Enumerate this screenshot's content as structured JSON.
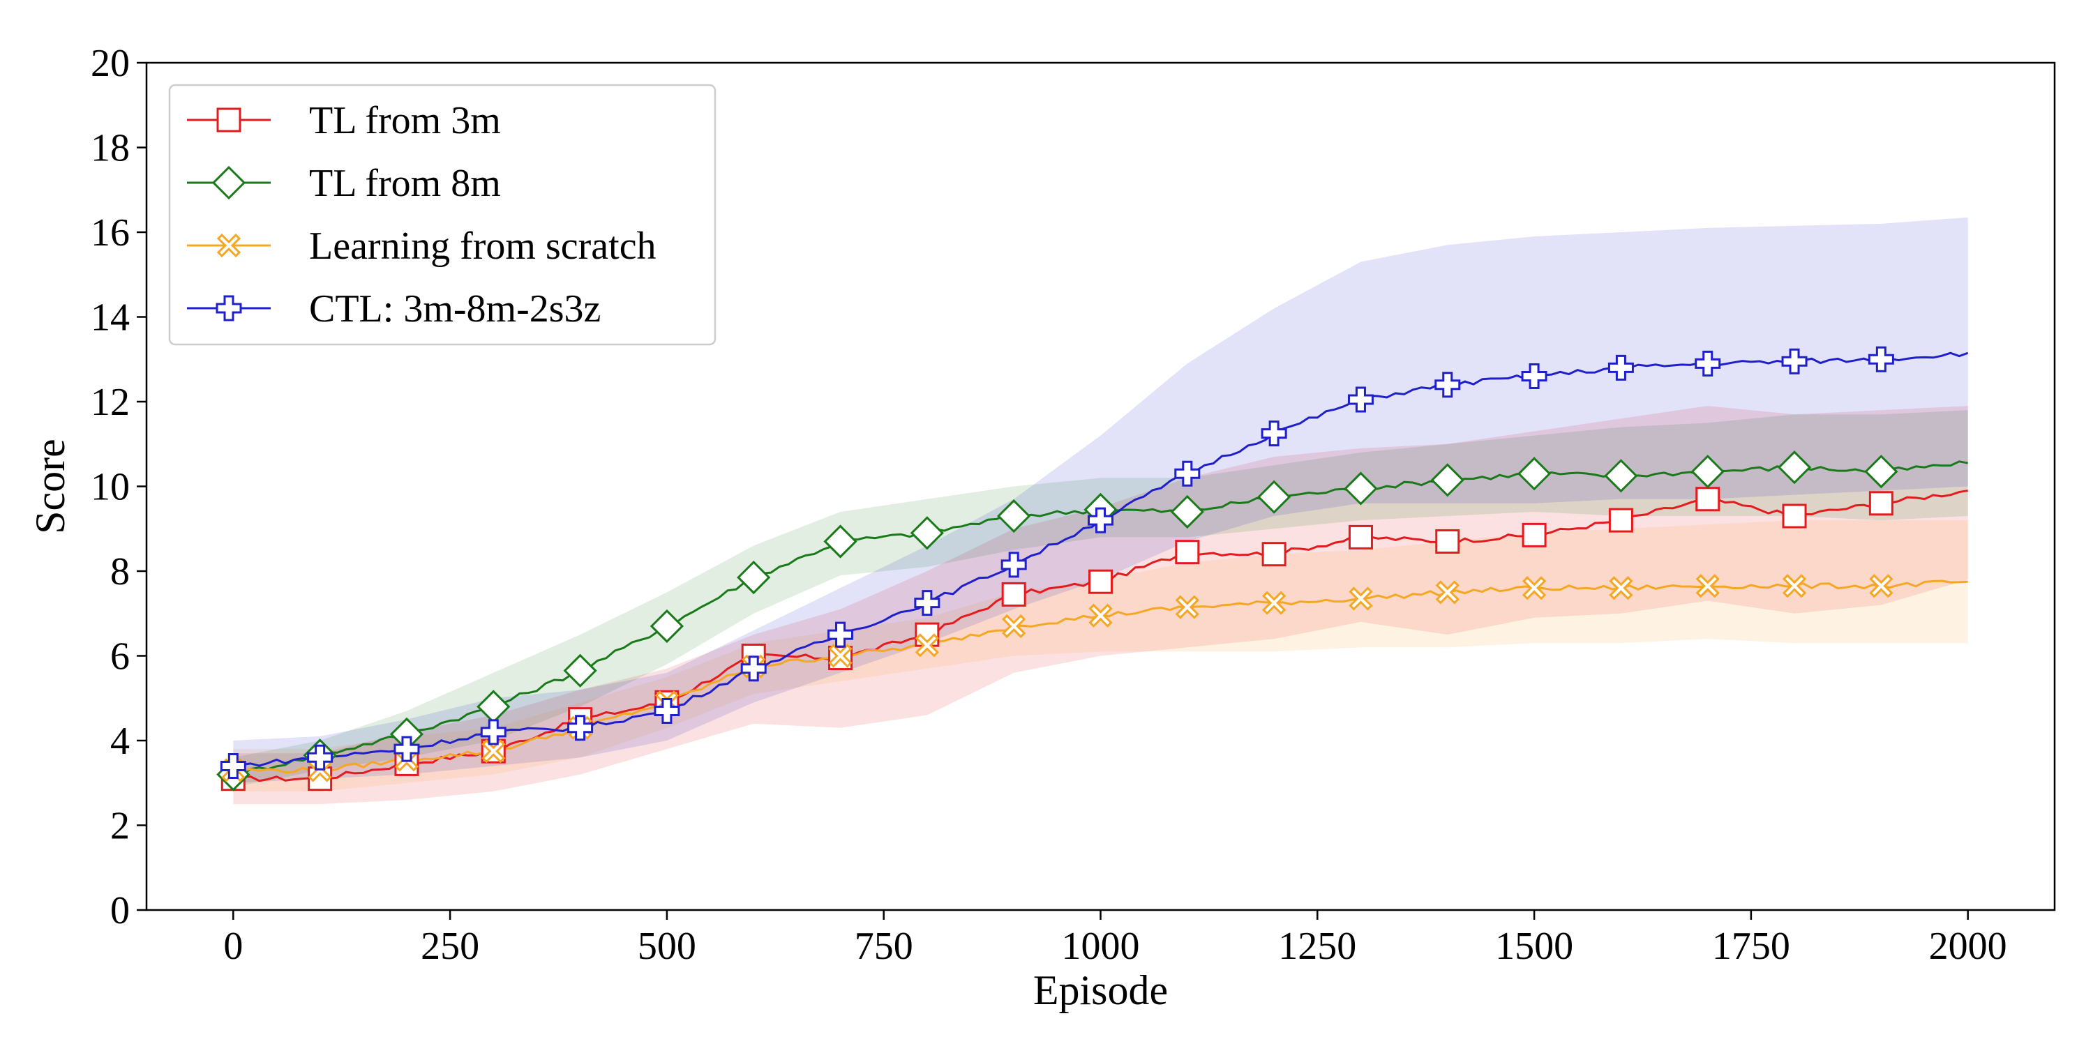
{
  "chart_data": {
    "type": "line",
    "title": "",
    "xlabel": "Episode",
    "ylabel": "Score",
    "xlim": [
      -100,
      2100
    ],
    "ylim": [
      0,
      20
    ],
    "xticks": [
      0,
      250,
      500,
      750,
      1000,
      1250,
      1500,
      1750,
      2000
    ],
    "yticks": [
      0,
      2,
      4,
      6,
      8,
      10,
      12,
      14,
      16,
      18,
      20
    ],
    "grid": false,
    "legend_position": "top-left",
    "series": [
      {
        "name": "TL from 3m",
        "color": "#e41a1c",
        "marker": "square",
        "x": [
          0,
          100,
          200,
          300,
          400,
          500,
          600,
          700,
          800,
          900,
          1000,
          1100,
          1200,
          1300,
          1400,
          1500,
          1600,
          1700,
          1800,
          1900,
          2000
        ],
        "y": [
          3.1,
          3.1,
          3.45,
          3.75,
          4.5,
          4.9,
          6.0,
          5.95,
          6.5,
          7.45,
          7.75,
          8.45,
          8.4,
          8.8,
          8.7,
          8.85,
          9.2,
          9.7,
          9.3,
          9.6,
          9.9
        ],
        "lower": [
          2.5,
          2.5,
          2.6,
          2.8,
          3.2,
          3.8,
          4.4,
          4.3,
          4.6,
          5.6,
          6.0,
          6.2,
          6.4,
          6.8,
          6.5,
          6.9,
          7.0,
          7.3,
          7.0,
          7.2,
          7.8
        ],
        "upper": [
          3.7,
          3.7,
          4.2,
          4.6,
          5.2,
          5.7,
          6.5,
          7.1,
          8.0,
          9.0,
          9.5,
          10.2,
          10.7,
          10.9,
          11.0,
          11.3,
          11.6,
          11.9,
          11.7,
          11.8,
          11.9
        ]
      },
      {
        "name": "TL from 8m",
        "color": "#1a7a1a",
        "marker": "diamond",
        "x": [
          0,
          100,
          200,
          300,
          400,
          500,
          600,
          700,
          800,
          900,
          1000,
          1100,
          1200,
          1300,
          1400,
          1500,
          1600,
          1700,
          1800,
          1900,
          2000
        ],
        "y": [
          3.2,
          3.65,
          4.15,
          4.8,
          5.65,
          6.7,
          7.85,
          8.7,
          8.9,
          9.3,
          9.45,
          9.4,
          9.75,
          9.95,
          10.15,
          10.3,
          10.25,
          10.35,
          10.45,
          10.35,
          10.55
        ],
        "lower": [
          2.9,
          3.3,
          3.6,
          4.0,
          4.8,
          5.8,
          7.0,
          7.9,
          8.1,
          8.5,
          8.8,
          8.8,
          9.0,
          9.2,
          9.3,
          9.4,
          9.3,
          9.3,
          9.3,
          9.2,
          9.3
        ],
        "upper": [
          3.6,
          4.0,
          4.7,
          5.6,
          6.5,
          7.5,
          8.6,
          9.4,
          9.7,
          10.0,
          10.2,
          10.2,
          10.5,
          10.8,
          11.0,
          11.2,
          11.4,
          11.5,
          11.7,
          11.7,
          11.8
        ]
      },
      {
        "name": "Learning from scratch",
        "color": "#f5a623",
        "marker": "x",
        "x": [
          0,
          100,
          200,
          300,
          400,
          500,
          600,
          700,
          800,
          900,
          1000,
          1100,
          1200,
          1300,
          1400,
          1500,
          1600,
          1700,
          1800,
          1900,
          2000
        ],
        "y": [
          3.3,
          3.3,
          3.55,
          3.75,
          4.3,
          4.9,
          5.75,
          6.0,
          6.25,
          6.7,
          6.95,
          7.15,
          7.25,
          7.35,
          7.5,
          7.6,
          7.6,
          7.65,
          7.65,
          7.65,
          7.75
        ],
        "lower": [
          2.8,
          2.8,
          3.0,
          3.2,
          3.6,
          4.3,
          5.1,
          5.4,
          5.7,
          6.0,
          6.1,
          6.1,
          6.1,
          6.2,
          6.2,
          6.3,
          6.3,
          6.4,
          6.3,
          6.3,
          6.3
        ],
        "upper": [
          3.8,
          3.8,
          4.1,
          4.3,
          4.9,
          5.5,
          6.3,
          6.6,
          6.9,
          7.5,
          7.8,
          8.2,
          8.4,
          8.5,
          8.7,
          8.9,
          9.0,
          9.1,
          9.2,
          9.2,
          9.2
        ]
      },
      {
        "name": "CTL: 3m-8m-2s3z",
        "color": "#1f1fcc",
        "marker": "plus",
        "x": [
          0,
          100,
          200,
          300,
          400,
          500,
          600,
          700,
          800,
          900,
          1000,
          1100,
          1200,
          1300,
          1400,
          1500,
          1600,
          1700,
          1800,
          1900,
          2000
        ],
        "y": [
          3.4,
          3.6,
          3.8,
          4.2,
          4.3,
          4.7,
          5.7,
          6.5,
          7.25,
          8.15,
          9.2,
          10.3,
          11.25,
          12.05,
          12.4,
          12.6,
          12.8,
          12.9,
          12.95,
          13.0,
          13.15
        ],
        "lower": [
          3.0,
          3.1,
          3.2,
          3.4,
          3.6,
          4.0,
          4.9,
          5.6,
          6.3,
          7.1,
          7.8,
          8.7,
          9.3,
          9.6,
          9.6,
          9.6,
          9.7,
          9.7,
          9.8,
          9.9,
          10.0
        ],
        "upper": [
          4.0,
          4.1,
          4.5,
          5.0,
          5.2,
          5.6,
          6.6,
          7.6,
          8.6,
          9.7,
          11.2,
          12.9,
          14.2,
          15.3,
          15.7,
          15.9,
          16.0,
          16.1,
          16.15,
          16.2,
          16.35
        ]
      }
    ]
  }
}
